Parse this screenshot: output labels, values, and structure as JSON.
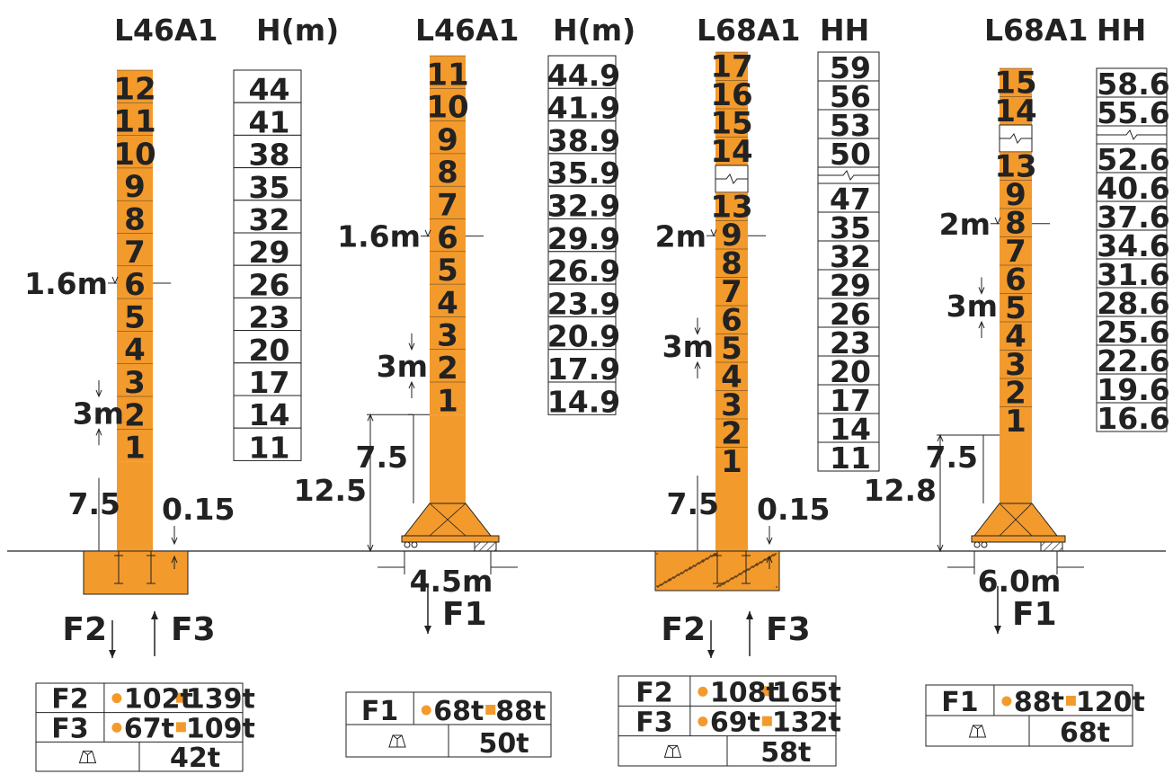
{
  "colors": {
    "mast": "#F39A2C",
    "ink": "#222222",
    "concrete_speckle": "#5a3b16"
  },
  "icons": {
    "base_weight": "foundation-block-icon"
  },
  "cranes": [
    {
      "model": "L46A1",
      "height_header": "H(m)",
      "sections": [
        "12",
        "11",
        "10",
        "9",
        "8",
        "7",
        "6",
        "5",
        "4",
        "3",
        "2",
        "1"
      ],
      "heights": [
        "44",
        "41",
        "38",
        "35",
        "32",
        "29",
        "26",
        "23",
        "20",
        "17",
        "14",
        "11"
      ],
      "break_after": null,
      "mast_width": "1.6m",
      "section_height": "3m",
      "base_height": "7.5",
      "embed": "0.15",
      "base_type": "block",
      "forces": [
        "F2",
        "F3"
      ],
      "table": {
        "rows": [
          [
            "F2",
            "102t",
            "139t"
          ],
          [
            "F3",
            "67t",
            "109t"
          ]
        ],
        "ballast": "42t"
      }
    },
    {
      "model": "L46A1",
      "height_header": "H(m)",
      "sections": [
        "11",
        "10",
        "9",
        "8",
        "7",
        "6",
        "5",
        "4",
        "3",
        "2",
        "1"
      ],
      "heights": [
        "44.9",
        "41.9",
        "38.9",
        "35.9",
        "32.9",
        "29.9",
        "26.9",
        "23.9",
        "20.9",
        "17.9",
        "14.9"
      ],
      "break_after": null,
      "mast_width": "1.6m",
      "section_height": "3m",
      "base_height": "7.5",
      "total_base": "12.5",
      "base_width": "4.5m",
      "base_type": "cross",
      "forces": [
        "F1"
      ],
      "table": {
        "rows": [
          [
            "F1",
            "68t",
            "88t"
          ]
        ],
        "ballast": "50t"
      }
    },
    {
      "model": "L68A1",
      "height_header": "HH",
      "sections": [
        "17",
        "16",
        "15",
        "14",
        "13",
        "9",
        "8",
        "7",
        "6",
        "5",
        "4",
        "3",
        "2",
        "1"
      ],
      "heights": [
        "59",
        "56",
        "53",
        "50",
        "47",
        "35",
        "32",
        "29",
        "26",
        "23",
        "20",
        "17",
        "14",
        "11"
      ],
      "break_after": 4,
      "mast_width": "2m",
      "section_height": "3m",
      "base_height": "7.5",
      "embed": "0.15",
      "base_type": "concrete",
      "forces": [
        "F2",
        "F3"
      ],
      "table": {
        "rows": [
          [
            "F2",
            "108t",
            "165t"
          ],
          [
            "F3",
            "69t",
            "132t"
          ]
        ],
        "ballast": "58t"
      }
    },
    {
      "model": "L68A1",
      "height_header": "HH",
      "sections": [
        "15",
        "14",
        "13",
        "9",
        "8",
        "7",
        "6",
        "5",
        "4",
        "3",
        "2",
        "1"
      ],
      "heights": [
        "58.6",
        "55.6",
        "52.6",
        "40.6",
        "37.6",
        "34.6",
        "31.6",
        "28.6",
        "25.6",
        "22.6",
        "19.6",
        "16.6"
      ],
      "break_after": 2,
      "mast_width": "2m",
      "section_height": "3m",
      "base_height": "7.5",
      "total_base": "12.8",
      "base_width": "6.0m",
      "base_type": "cross",
      "forces": [
        "F1"
      ],
      "table": {
        "rows": [
          [
            "F1",
            "88t",
            "120t"
          ]
        ],
        "ballast": "68t"
      }
    }
  ]
}
